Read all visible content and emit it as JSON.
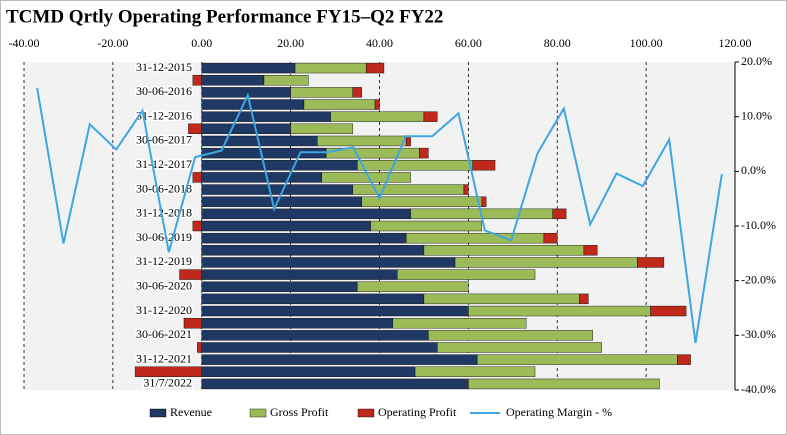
{
  "chart_data": {
    "type": "stacked-bar-line",
    "title": "TCMD Qrtly Operating Performance FY15–Q2 FY22",
    "categories": [
      "31-12-2015",
      null,
      "30-06-2016",
      null,
      "31-12-2016",
      null,
      "30-06-2017",
      null,
      "31-12-2017",
      null,
      "30-06-2018",
      null,
      "31-12-2018",
      null,
      "30-06-2019",
      null,
      "31-12-2019",
      null,
      "30-06-2020",
      null,
      "31-12-2020",
      null,
      "30-06-2021",
      null,
      "31-12-2021",
      null,
      "31/7/2022"
    ],
    "series": [
      {
        "name": "Revenue",
        "color": "#1f3864",
        "values": [
          21,
          14,
          20,
          23,
          29,
          20,
          26,
          28,
          35,
          27,
          34,
          36,
          47,
          38,
          46,
          50,
          57,
          44,
          35,
          50,
          60,
          43,
          51,
          53,
          62,
          48,
          60
        ]
      },
      {
        "name": "Gross Profit",
        "color": "#9bbb59",
        "values": [
          16,
          10,
          14,
          16,
          21,
          14,
          20,
          21,
          26,
          20,
          25,
          27,
          32,
          25,
          31,
          36,
          41,
          31,
          25,
          35,
          41,
          30,
          37,
          37,
          45,
          27,
          43
        ]
      },
      {
        "name": "Operating Profit",
        "color": "#c0281c",
        "values": [
          4,
          -2,
          2,
          1,
          3,
          -3,
          1,
          2,
          5,
          -2,
          1,
          1,
          3,
          -2,
          3,
          3,
          6,
          -5,
          0,
          2,
          8,
          -4,
          0,
          -1,
          3,
          -15,
          0
        ]
      },
      {
        "name": "Operating Margin - %",
        "color": "#3ea6e0",
        "axis": "y2",
        "values": [
          15.2,
          -13.2,
          8.6,
          4.0,
          11.1,
          -14.8,
          2.6,
          3.8,
          13.9,
          -6.9,
          3.5,
          3.5,
          4.4,
          -4.9,
          6.4,
          6.4,
          10.6,
          -10.8,
          -12.6,
          3.3,
          11.5,
          -9.7,
          -0.4,
          -2.7,
          5.8,
          -31.4,
          -0.5
        ]
      }
    ],
    "xlim": [
      -40,
      120
    ],
    "xticks": [
      {
        "value": -40,
        "label": "-40.00"
      },
      {
        "value": -20,
        "label": "-20.00"
      },
      {
        "value": 0,
        "label": "0.00"
      },
      {
        "value": 20,
        "label": "20.00"
      },
      {
        "value": 40,
        "label": "40.00"
      },
      {
        "value": 60,
        "label": "60.00"
      },
      {
        "value": 80,
        "label": "80.00"
      },
      {
        "value": 100,
        "label": "100.00"
      },
      {
        "value": 120,
        "label": "120.00"
      }
    ],
    "y2lim": [
      -40,
      20
    ],
    "y2ticks": [
      {
        "value": 20,
        "label": "20.0%"
      },
      {
        "value": 10,
        "label": "10.0%"
      },
      {
        "value": 0,
        "label": "0.0%"
      },
      {
        "value": -10,
        "label": "-10.0%"
      },
      {
        "value": -20,
        "label": "-20.0%"
      },
      {
        "value": -30,
        "label": "-30.0%"
      },
      {
        "value": -40,
        "label": "-40.0%"
      }
    ],
    "grid": true
  }
}
